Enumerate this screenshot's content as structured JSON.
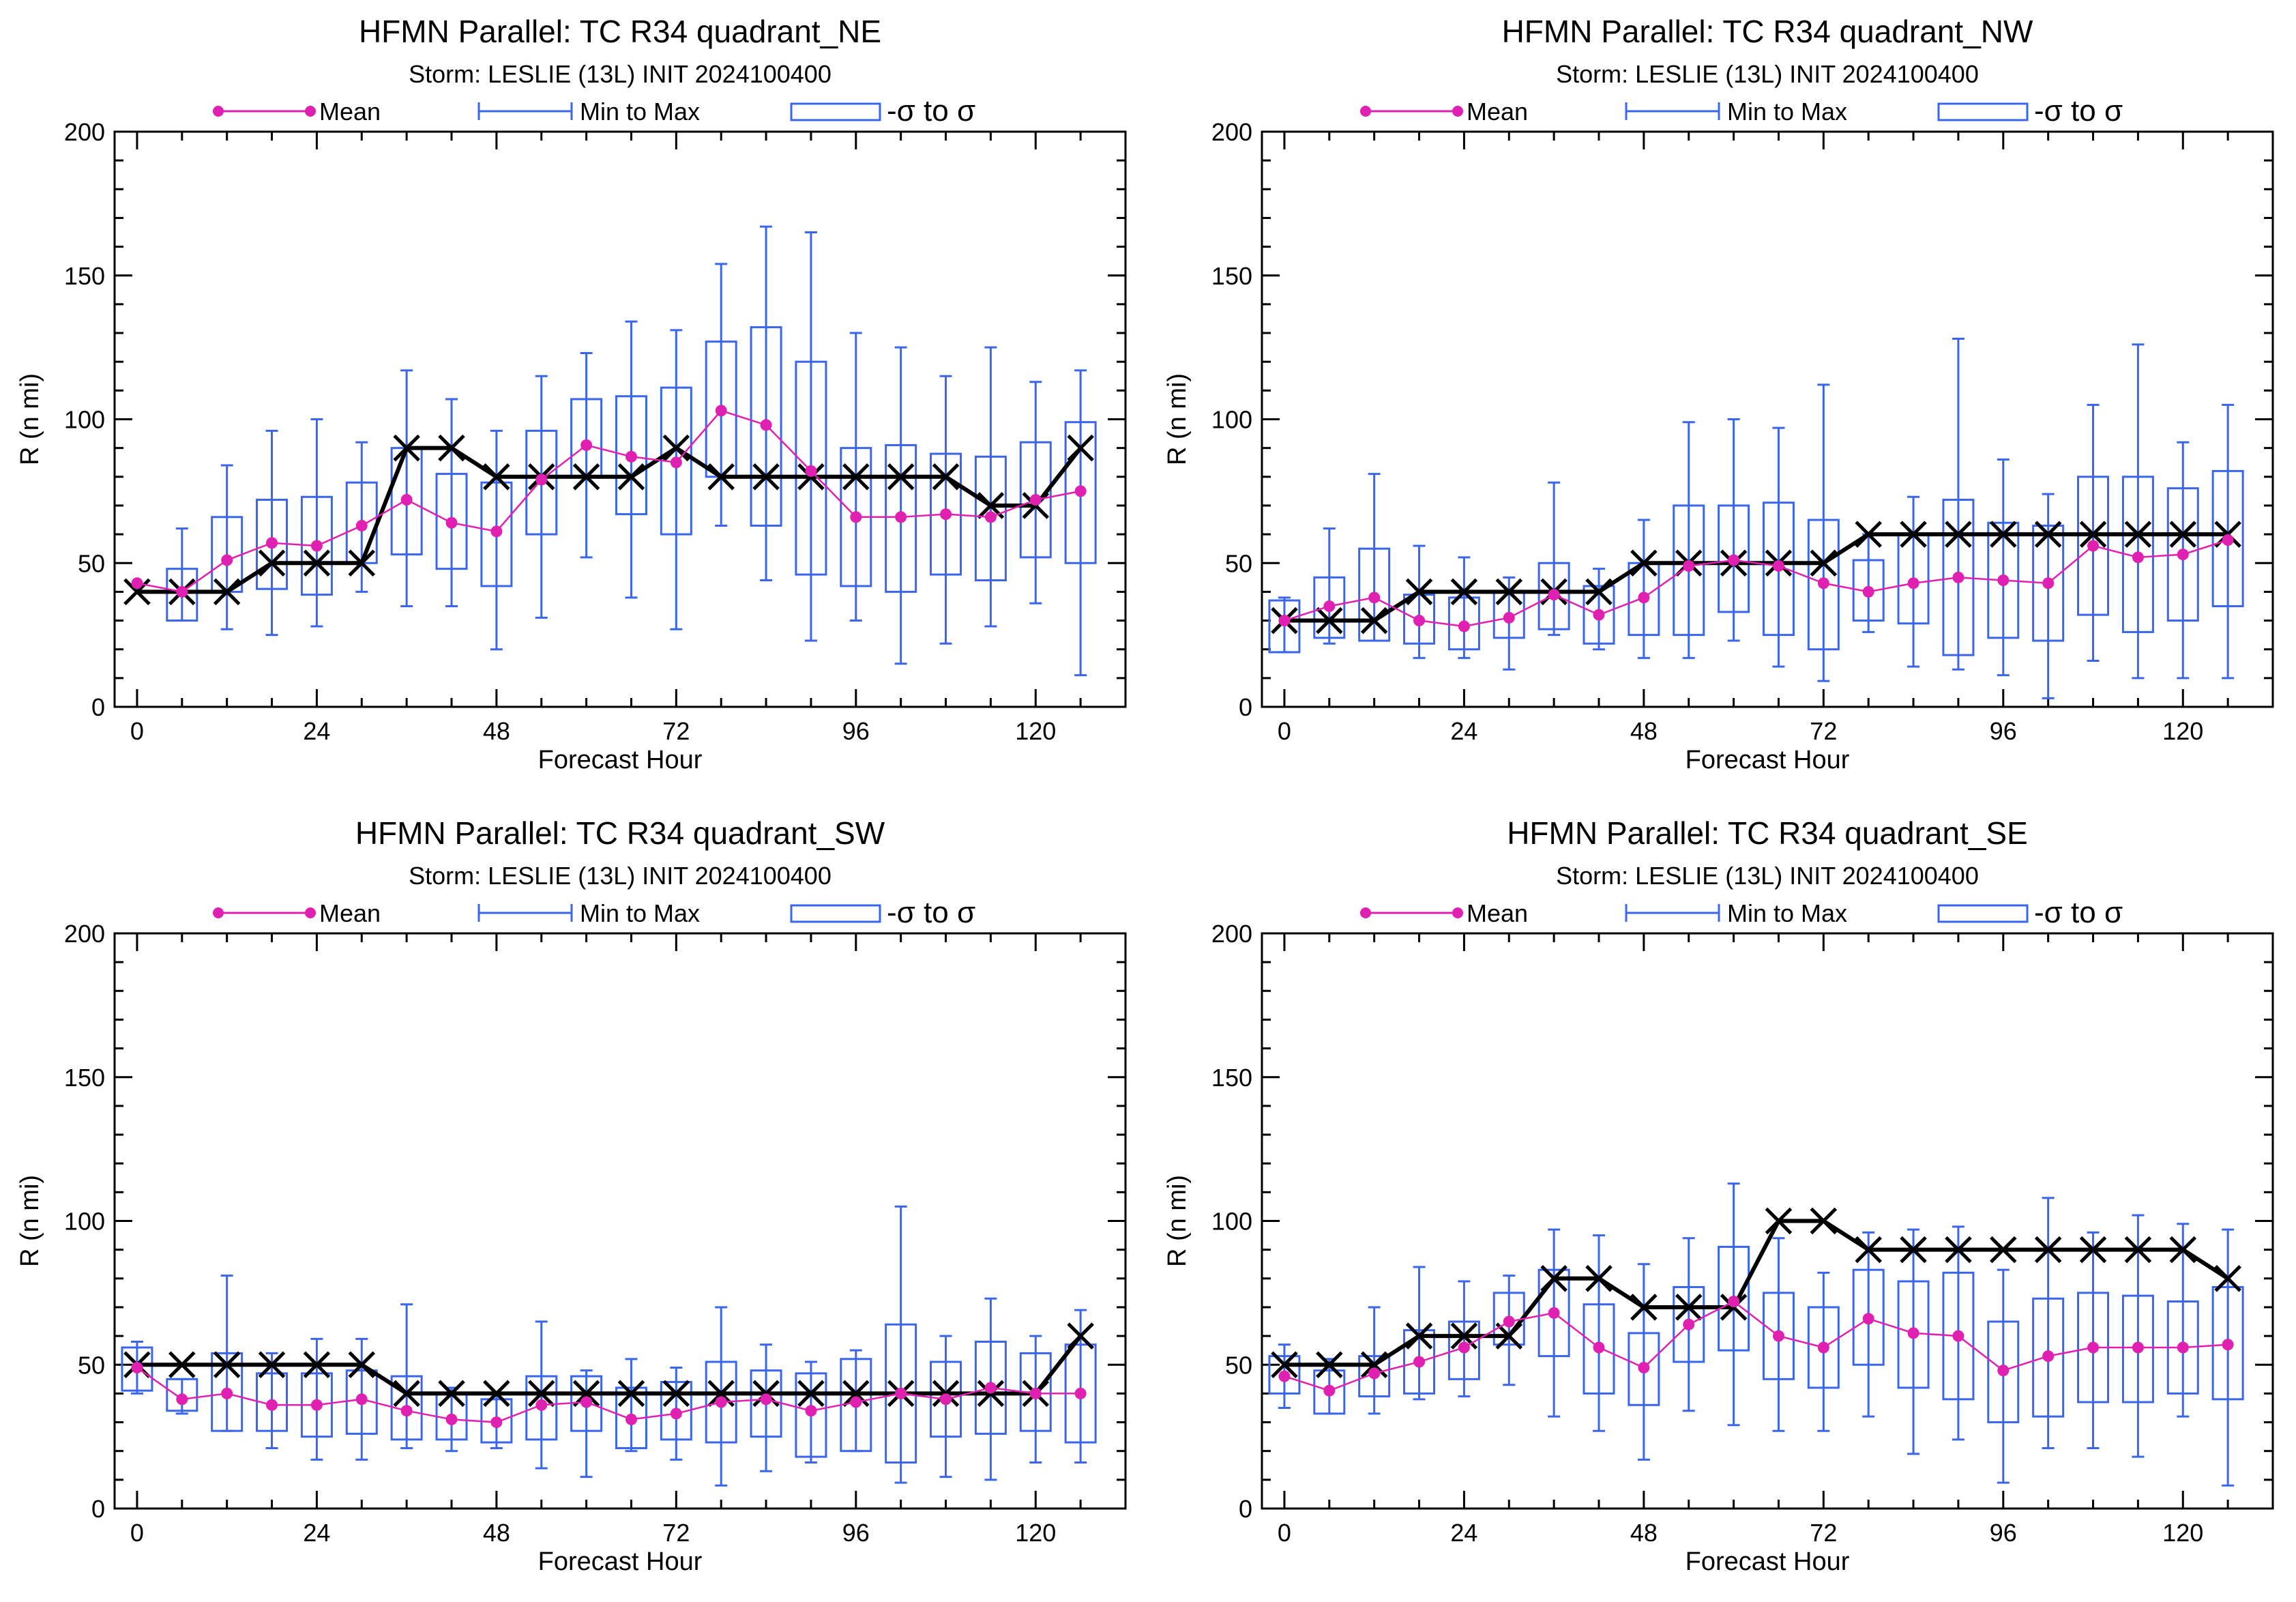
{
  "colors": {
    "mean": "#e020b0",
    "minmax": "#3a66ee",
    "sigma": "#3a66ee",
    "best_track": "#000000",
    "axis": "#000000"
  },
  "legend": {
    "mean": "Mean",
    "minmax": "Min to Max",
    "sigma": "-σ to σ"
  },
  "chart_data": [
    {
      "type": "box",
      "title": "HFMN Parallel: TC  R34 quadrant_NE",
      "subtitle": "Storm: LESLIE (13L) INIT 2024100400",
      "xlabel": "Forecast Hour",
      "ylabel": "R (n mi)",
      "xlim": [
        -3,
        132
      ],
      "ylim": [
        0,
        200
      ],
      "xticks": [
        0,
        24,
        48,
        72,
        96,
        120
      ],
      "yticks": [
        0,
        50,
        100,
        150,
        200
      ],
      "x": [
        0,
        6,
        12,
        18,
        24,
        30,
        36,
        42,
        48,
        54,
        60,
        66,
        72,
        78,
        84,
        90,
        96,
        102,
        108,
        114,
        120,
        126
      ],
      "mean": [
        43,
        40,
        51,
        57,
        56,
        63,
        72,
        64,
        61,
        79,
        91,
        87,
        85,
        103,
        98,
        82,
        66,
        66,
        67,
        66,
        72,
        75
      ],
      "min": [
        null,
        30,
        27,
        25,
        28,
        40,
        35,
        35,
        20,
        31,
        52,
        38,
        27,
        63,
        44,
        23,
        30,
        15,
        22,
        28,
        36,
        11
      ],
      "max": [
        null,
        62,
        84,
        96,
        100,
        92,
        117,
        107,
        96,
        115,
        123,
        134,
        131,
        154,
        167,
        165,
        130,
        125,
        115,
        125,
        113,
        117
      ],
      "sigma_low": [
        null,
        30,
        40,
        41,
        39,
        50,
        53,
        48,
        42,
        60,
        80,
        67,
        60,
        80,
        63,
        46,
        42,
        40,
        46,
        44,
        52,
        50
      ],
      "sigma_high": [
        null,
        48,
        66,
        72,
        73,
        78,
        90,
        81,
        78,
        96,
        107,
        108,
        111,
        127,
        132,
        120,
        90,
        91,
        88,
        87,
        92,
        99
      ],
      "best_track": [
        40,
        40,
        40,
        50,
        50,
        50,
        90,
        90,
        80,
        80,
        80,
        80,
        90,
        80,
        80,
        80,
        80,
        80,
        80,
        70,
        70,
        90
      ]
    },
    {
      "type": "box",
      "title": "HFMN Parallel: TC  R34 quadrant_NW",
      "subtitle": "Storm: LESLIE (13L) INIT 2024100400",
      "xlabel": "Forecast Hour",
      "ylabel": "R (n mi)",
      "xlim": [
        -3,
        132
      ],
      "ylim": [
        0,
        200
      ],
      "xticks": [
        0,
        24,
        48,
        72,
        96,
        120
      ],
      "yticks": [
        0,
        50,
        100,
        150,
        200
      ],
      "x": [
        0,
        6,
        12,
        18,
        24,
        30,
        36,
        42,
        48,
        54,
        60,
        66,
        72,
        78,
        84,
        90,
        96,
        102,
        108,
        114,
        120,
        126
      ],
      "mean": [
        30,
        35,
        38,
        30,
        28,
        31,
        39,
        32,
        38,
        49,
        51,
        49,
        43,
        40,
        43,
        45,
        44,
        43,
        56,
        52,
        53,
        58
      ],
      "min": [
        19,
        22,
        23,
        17,
        17,
        13,
        25,
        20,
        17,
        17,
        23,
        14,
        9,
        26,
        14,
        13,
        11,
        3,
        16,
        10,
        10,
        10
      ],
      "max": [
        38,
        62,
        81,
        56,
        52,
        45,
        78,
        48,
        65,
        99,
        100,
        97,
        112,
        60,
        73,
        128,
        86,
        74,
        105,
        126,
        92,
        105
      ],
      "sigma_low": [
        19,
        24,
        23,
        22,
        20,
        24,
        27,
        22,
        25,
        25,
        33,
        25,
        20,
        30,
        29,
        18,
        24,
        23,
        32,
        26,
        30,
        35
      ],
      "sigma_high": [
        37,
        45,
        55,
        39,
        38,
        40,
        50,
        42,
        50,
        70,
        70,
        71,
        65,
        51,
        60,
        72,
        64,
        63,
        80,
        80,
        76,
        82
      ],
      "best_track": [
        30,
        30,
        30,
        40,
        40,
        40,
        40,
        40,
        50,
        50,
        50,
        50,
        50,
        60,
        60,
        60,
        60,
        60,
        60,
        60,
        60,
        60
      ]
    },
    {
      "type": "box",
      "title": "HFMN Parallel: TC  R34 quadrant_SW",
      "subtitle": "Storm: LESLIE (13L) INIT 2024100400",
      "xlabel": "Forecast Hour",
      "ylabel": "R (n mi)",
      "xlim": [
        -3,
        132
      ],
      "ylim": [
        0,
        200
      ],
      "xticks": [
        0,
        24,
        48,
        72,
        96,
        120
      ],
      "yticks": [
        0,
        50,
        100,
        150,
        200
      ],
      "x": [
        0,
        6,
        12,
        18,
        24,
        30,
        36,
        42,
        48,
        54,
        60,
        66,
        72,
        78,
        84,
        90,
        96,
        102,
        108,
        114,
        120,
        126
      ],
      "mean": [
        49,
        38,
        40,
        36,
        36,
        38,
        34,
        31,
        30,
        36,
        37,
        31,
        33,
        37,
        38,
        34,
        37,
        40,
        38,
        42,
        40,
        40
      ],
      "min": [
        40,
        33,
        27,
        21,
        17,
        17,
        21,
        20,
        21,
        14,
        11,
        20,
        17,
        8,
        13,
        16,
        20,
        9,
        11,
        10,
        16,
        16
      ],
      "max": [
        58,
        45,
        81,
        54,
        59,
        59,
        71,
        42,
        40,
        65,
        48,
        52,
        49,
        70,
        57,
        51,
        55,
        105,
        60,
        73,
        60,
        69
      ],
      "sigma_low": [
        41,
        34,
        27,
        27,
        25,
        26,
        24,
        24,
        23,
        24,
        27,
        21,
        24,
        23,
        25,
        18,
        20,
        16,
        25,
        26,
        27,
        23
      ],
      "sigma_high": [
        56,
        45,
        54,
        47,
        47,
        48,
        46,
        40,
        38,
        46,
        46,
        42,
        44,
        51,
        48,
        47,
        52,
        64,
        51,
        58,
        54,
        57
      ],
      "best_track": [
        50,
        50,
        50,
        50,
        50,
        50,
        40,
        40,
        40,
        40,
        40,
        40,
        40,
        40,
        40,
        40,
        40,
        40,
        40,
        40,
        40,
        60
      ]
    },
    {
      "type": "box",
      "title": "HFMN Parallel: TC  R34 quadrant_SE",
      "subtitle": "Storm: LESLIE (13L) INIT 2024100400",
      "xlabel": "Forecast Hour",
      "ylabel": "R (n mi)",
      "xlim": [
        -3,
        132
      ],
      "ylim": [
        0,
        200
      ],
      "xticks": [
        0,
        24,
        48,
        72,
        96,
        120
      ],
      "yticks": [
        0,
        50,
        100,
        150,
        200
      ],
      "x": [
        0,
        6,
        12,
        18,
        24,
        30,
        36,
        42,
        48,
        54,
        60,
        66,
        72,
        78,
        84,
        90,
        96,
        102,
        108,
        114,
        120,
        126
      ],
      "mean": [
        46,
        41,
        47,
        51,
        56,
        65,
        68,
        56,
        49,
        64,
        72,
        60,
        56,
        66,
        61,
        60,
        48,
        53,
        56,
        56,
        56,
        57
      ],
      "min": [
        35,
        33,
        33,
        38,
        39,
        43,
        32,
        27,
        17,
        34,
        29,
        27,
        27,
        32,
        19,
        24,
        9,
        21,
        21,
        18,
        32,
        8
      ],
      "max": [
        57,
        52,
        70,
        84,
        79,
        81,
        97,
        95,
        85,
        94,
        113,
        94,
        82,
        96,
        97,
        98,
        83,
        108,
        96,
        102,
        99,
        97
      ],
      "sigma_low": [
        40,
        33,
        39,
        40,
        45,
        57,
        53,
        40,
        36,
        51,
        55,
        45,
        42,
        50,
        42,
        38,
        30,
        32,
        37,
        37,
        40,
        38
      ],
      "sigma_high": [
        53,
        48,
        53,
        62,
        65,
        75,
        83,
        71,
        61,
        77,
        91,
        75,
        70,
        83,
        79,
        82,
        65,
        73,
        75,
        74,
        72,
        77
      ],
      "best_track": [
        50,
        50,
        50,
        60,
        60,
        60,
        80,
        80,
        70,
        70,
        70,
        100,
        100,
        90,
        90,
        90,
        90,
        90,
        90,
        90,
        90,
        80
      ]
    }
  ]
}
